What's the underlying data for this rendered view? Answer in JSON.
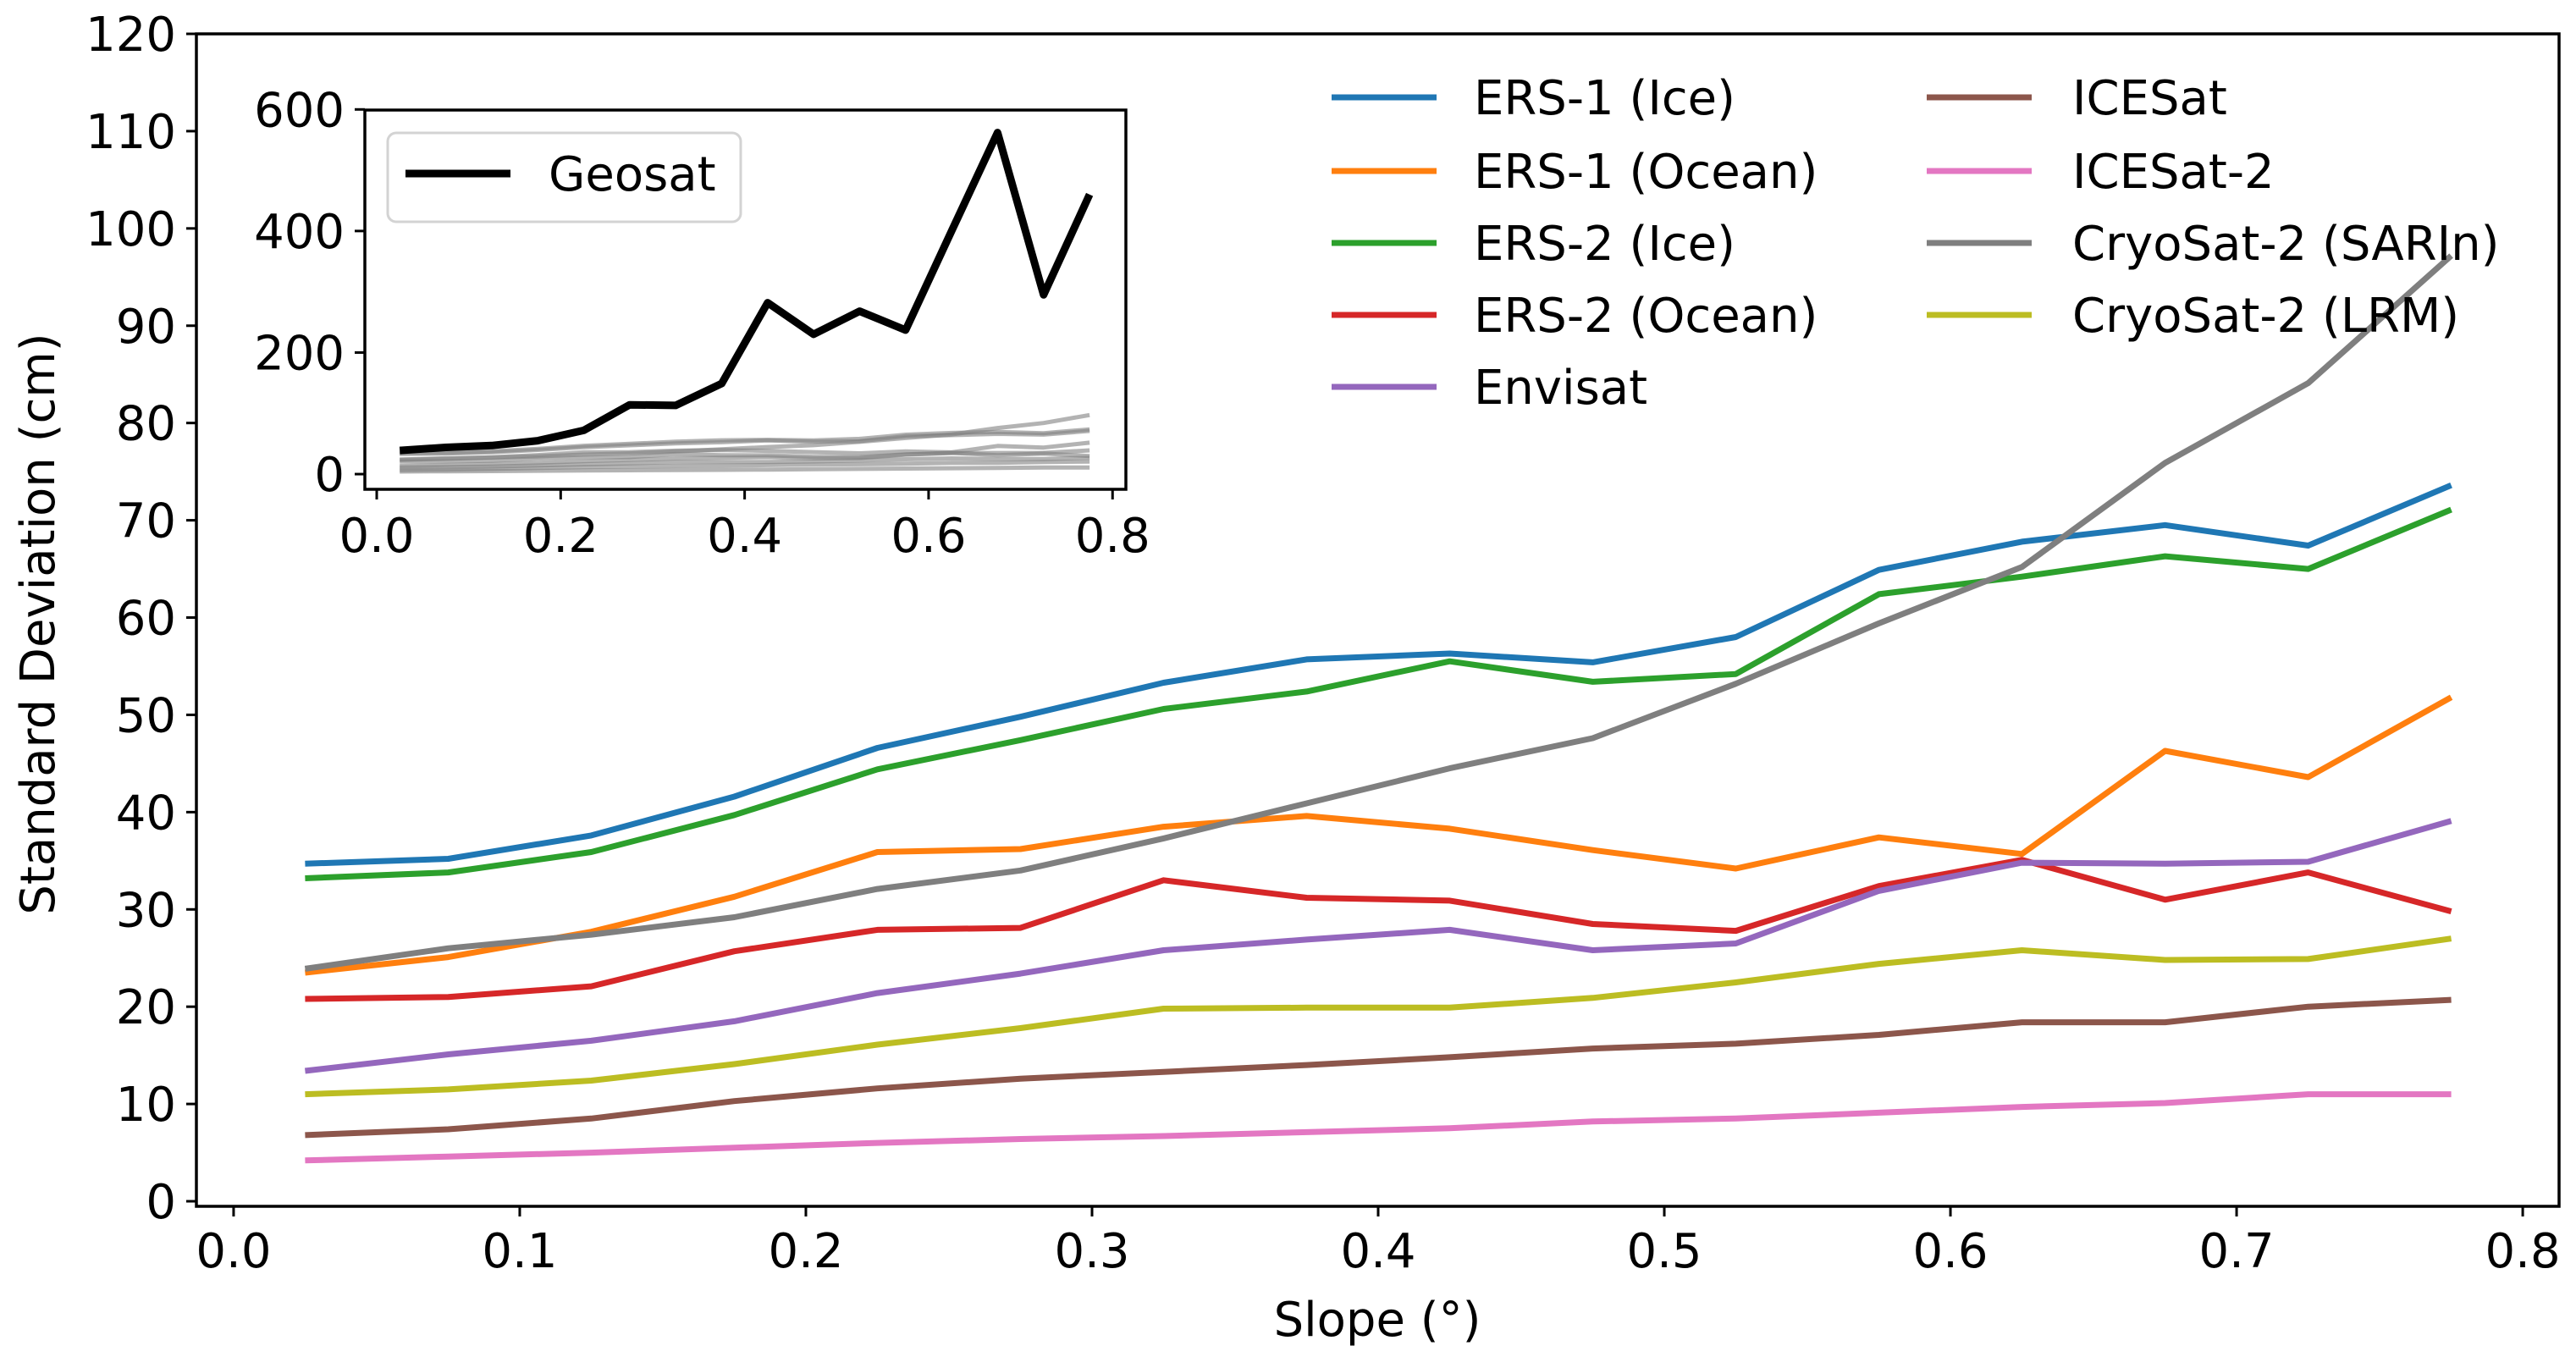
{
  "chart_data": [
    {
      "id": "main",
      "type": "line",
      "title": "",
      "xlabel": "Slope (°)",
      "ylabel": "Standard Deviation (cm)",
      "xlim": [
        -0.013,
        0.8127
      ],
      "ylim": [
        -0.52,
        120
      ],
      "xticks": [
        0.0,
        0.1,
        0.2,
        0.3,
        0.4,
        0.5,
        0.6,
        0.7,
        0.8
      ],
      "xtick_labels": [
        "0.0",
        "0.1",
        "0.2",
        "0.3",
        "0.4",
        "0.5",
        "0.6",
        "0.7",
        "0.8"
      ],
      "yticks": [
        0,
        10,
        20,
        30,
        40,
        50,
        60,
        70,
        80,
        90,
        100,
        110,
        120
      ],
      "ytick_labels": [
        "0",
        "10",
        "20",
        "30",
        "40",
        "50",
        "60",
        "70",
        "80",
        "90",
        "100",
        "110",
        "120"
      ],
      "grid": false,
      "legend": {
        "placement": "top-right",
        "columns": 2,
        "frame": false
      },
      "x": [
        0.025,
        0.075,
        0.125,
        0.175,
        0.225,
        0.275,
        0.325,
        0.375,
        0.425,
        0.475,
        0.525,
        0.575,
        0.625,
        0.675,
        0.725,
        0.775
      ],
      "series": [
        {
          "name": "ERS-1 (Ice)",
          "color": "#1f77b4",
          "values": [
            34.7,
            35.2,
            37.6,
            41.6,
            46.6,
            49.8,
            53.3,
            55.7,
            56.3,
            55.4,
            58.0,
            64.9,
            67.8,
            69.5,
            67.4,
            73.6
          ]
        },
        {
          "name": "ERS-1 (Ocean)",
          "color": "#ff7f0e",
          "values": [
            23.5,
            25.1,
            27.7,
            31.3,
            35.9,
            36.2,
            38.5,
            39.6,
            38.3,
            36.1,
            34.2,
            37.4,
            35.7,
            46.3,
            43.6,
            51.8
          ]
        },
        {
          "name": "ERS-2 (Ice)",
          "color": "#2ca02c",
          "values": [
            33.2,
            33.8,
            35.9,
            39.7,
            44.4,
            47.4,
            50.6,
            52.4,
            55.5,
            53.4,
            54.2,
            62.4,
            64.2,
            66.3,
            65.0,
            71.1
          ]
        },
        {
          "name": "ERS-2 (Ocean)",
          "color": "#d62728",
          "values": [
            20.8,
            21.0,
            22.1,
            25.7,
            27.9,
            28.1,
            33.0,
            31.2,
            30.9,
            28.5,
            27.8,
            32.4,
            35.1,
            31.0,
            33.8,
            29.8
          ]
        },
        {
          "name": "Envisat",
          "color": "#9467bd",
          "values": [
            13.4,
            15.1,
            16.5,
            18.5,
            21.4,
            23.4,
            25.8,
            26.9,
            27.9,
            25.8,
            26.5,
            31.9,
            34.8,
            34.7,
            34.9,
            39.1
          ]
        },
        {
          "name": "ICESat",
          "color": "#8c564b",
          "values": [
            6.8,
            7.4,
            8.5,
            10.3,
            11.6,
            12.6,
            13.3,
            14.0,
            14.8,
            15.7,
            16.2,
            17.1,
            18.4,
            18.4,
            20.0,
            20.7
          ]
        },
        {
          "name": "ICESat-2",
          "color": "#e377c2",
          "values": [
            4.2,
            4.6,
            5.0,
            5.5,
            6.0,
            6.4,
            6.7,
            7.1,
            7.5,
            8.2,
            8.5,
            9.1,
            9.7,
            10.1,
            11.0,
            11.0
          ]
        },
        {
          "name": "CryoSat-2 (SARIn)",
          "color": "#7f7f7f",
          "values": [
            23.9,
            26.0,
            27.4,
            29.2,
            32.1,
            34.0,
            37.3,
            40.9,
            44.5,
            47.6,
            53.2,
            59.4,
            65.2,
            75.9,
            84.1,
            97.2
          ]
        },
        {
          "name": "CryoSat-2 (LRM)",
          "color": "#bcbd22",
          "values": [
            11.0,
            11.5,
            12.4,
            14.1,
            16.1,
            17.8,
            19.8,
            19.9,
            19.9,
            20.9,
            22.5,
            24.4,
            25.8,
            24.8,
            24.9,
            27.0
          ]
        }
      ]
    },
    {
      "id": "inset",
      "type": "line",
      "title": "",
      "xlabel": "",
      "ylabel": "",
      "xlim": [
        -0.0129,
        0.8145
      ],
      "ylim": [
        -25,
        599
      ],
      "xticks": [
        0.0,
        0.2,
        0.4,
        0.6,
        0.8
      ],
      "xtick_labels": [
        "0.0",
        "0.2",
        "0.4",
        "0.6",
        "0.8"
      ],
      "yticks": [
        0,
        200,
        400,
        600
      ],
      "ytick_labels": [
        "0",
        "200",
        "400",
        "600"
      ],
      "grid": false,
      "legend": {
        "placement": "top-left",
        "frame": true
      },
      "x": [
        0.025,
        0.075,
        0.125,
        0.175,
        0.225,
        0.275,
        0.325,
        0.375,
        0.425,
        0.475,
        0.525,
        0.575,
        0.625,
        0.675,
        0.725,
        0.775
      ],
      "highlight_series": {
        "name": "Geosat",
        "color": "#000000",
        "values": [
          39,
          44,
          47,
          55,
          72,
          114,
          113,
          149,
          282,
          230,
          268,
          237,
          400,
          562,
          295,
          460
        ]
      },
      "background_series_note": "All main-panel series redrawn in gray",
      "background_color": "#808080"
    }
  ]
}
